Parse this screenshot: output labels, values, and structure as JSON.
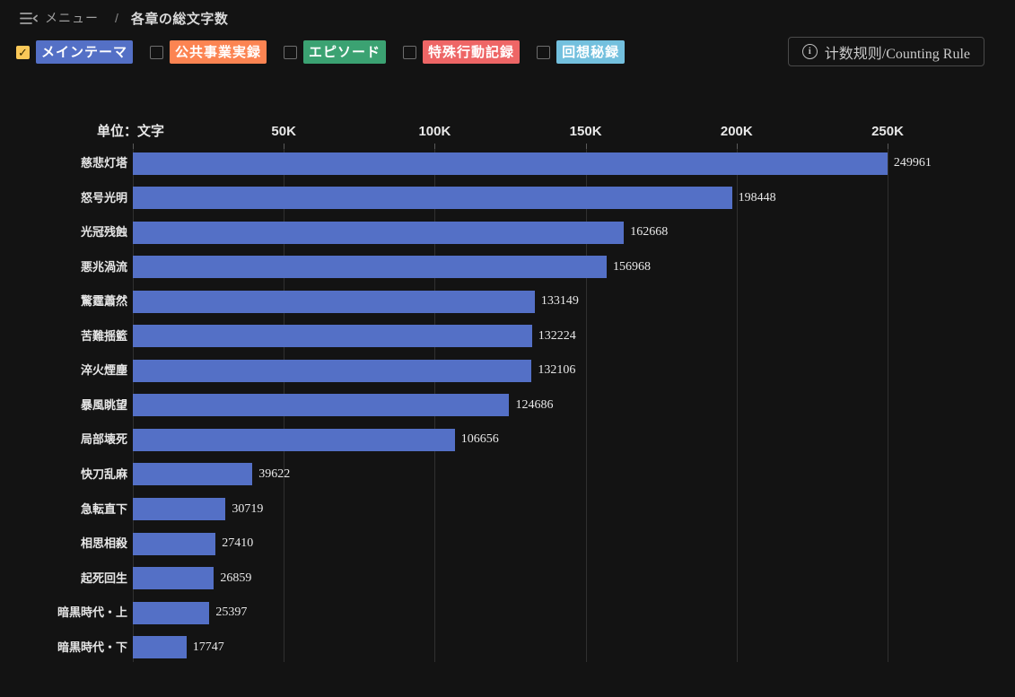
{
  "header": {
    "menu_label": "メニュー",
    "separator": "/",
    "title": "各章の総文字数"
  },
  "filters": [
    {
      "label": "メインテーマ",
      "color": "#5470c6",
      "checked": true
    },
    {
      "label": "公共事業実録",
      "color": "#fc8452",
      "checked": false
    },
    {
      "label": "エピソード",
      "color": "#3ba272",
      "checked": false
    },
    {
      "label": "特殊行動記録",
      "color": "#ee6666",
      "checked": false
    },
    {
      "label": "回想秘録",
      "color": "#73c0de",
      "checked": false
    }
  ],
  "button": {
    "label": "计数规则/Counting Rule",
    "icon": "info-circle-icon"
  },
  "chart_data": {
    "type": "bar",
    "orientation": "horizontal",
    "title": "各章の総文字数",
    "unit_label": "单位：文字",
    "categories": [
      "慈悲灯塔",
      "怒号光明",
      "光冠残蝕",
      "悪兆渦流",
      "驚霆蕭然",
      "苦難揺籃",
      "淬火煙塵",
      "暴風眺望",
      "局部壊死",
      "快刀乱麻",
      "急転直下",
      "相思相殺",
      "起死回生",
      "暗黒時代・上",
      "暗黒時代・下"
    ],
    "values": [
      249961,
      198448,
      162668,
      156968,
      133149,
      132224,
      132106,
      124686,
      106656,
      39622,
      30719,
      27410,
      26859,
      25397,
      17747
    ],
    "series_name": "メインテーマ",
    "x_ticks": [
      "50K",
      "100K",
      "150K",
      "200K",
      "250K"
    ],
    "x_tick_values": [
      50000,
      100000,
      150000,
      200000,
      250000
    ],
    "xlim": [
      0,
      250000
    ],
    "grid": true,
    "legend_position": "top-left",
    "bar_color": "#5470c6"
  },
  "colors": {
    "background": "#131313",
    "bar": "#5470c6",
    "checkbox_checked_bg": "#fac858",
    "gridline": "#303030"
  },
  "ui": {
    "check_glyph": "✓",
    "info_glyph": "i"
  }
}
